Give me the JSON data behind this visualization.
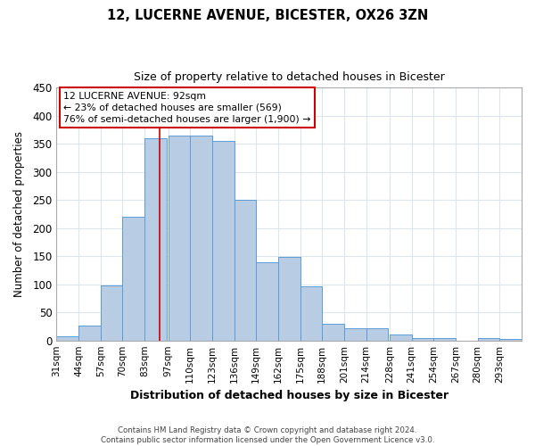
{
  "title1": "12, LUCERNE AVENUE, BICESTER, OX26 3ZN",
  "title2": "Size of property relative to detached houses in Bicester",
  "xlabel": "Distribution of detached houses by size in Bicester",
  "ylabel": "Number of detached properties",
  "bin_labels": [
    "31sqm",
    "44sqm",
    "57sqm",
    "70sqm",
    "83sqm",
    "97sqm",
    "110sqm",
    "123sqm",
    "136sqm",
    "149sqm",
    "162sqm",
    "175sqm",
    "188sqm",
    "201sqm",
    "214sqm",
    "228sqm",
    "241sqm",
    "254sqm",
    "267sqm",
    "280sqm",
    "293sqm"
  ],
  "bar_values": [
    8,
    27,
    98,
    220,
    360,
    365,
    365,
    355,
    250,
    140,
    148,
    97,
    30,
    21,
    21,
    10,
    4,
    4,
    0,
    4,
    2
  ],
  "bin_edges": [
    31,
    44,
    57,
    70,
    83,
    97,
    110,
    123,
    136,
    149,
    162,
    175,
    188,
    201,
    214,
    228,
    241,
    254,
    267,
    280,
    293,
    306
  ],
  "bar_color": "#b8cce4",
  "bar_edge_color": "#5b9bd5",
  "ylim": [
    0,
    450
  ],
  "yticks": [
    0,
    50,
    100,
    150,
    200,
    250,
    300,
    350,
    400,
    450
  ],
  "property_line_x": 92,
  "property_line_color": "#cc0000",
  "annotation_title": "12 LUCERNE AVENUE: 92sqm",
  "annotation_line1": "← 23% of detached houses are smaller (569)",
  "annotation_line2": "76% of semi-detached houses are larger (1,900) →",
  "annotation_box_color": "#ffffff",
  "annotation_box_edge": "#cc0000",
  "footer1": "Contains HM Land Registry data © Crown copyright and database right 2024.",
  "footer2": "Contains public sector information licensed under the Open Government Licence v3.0.",
  "background_color": "#ffffff",
  "grid_color": "#dce6f1"
}
